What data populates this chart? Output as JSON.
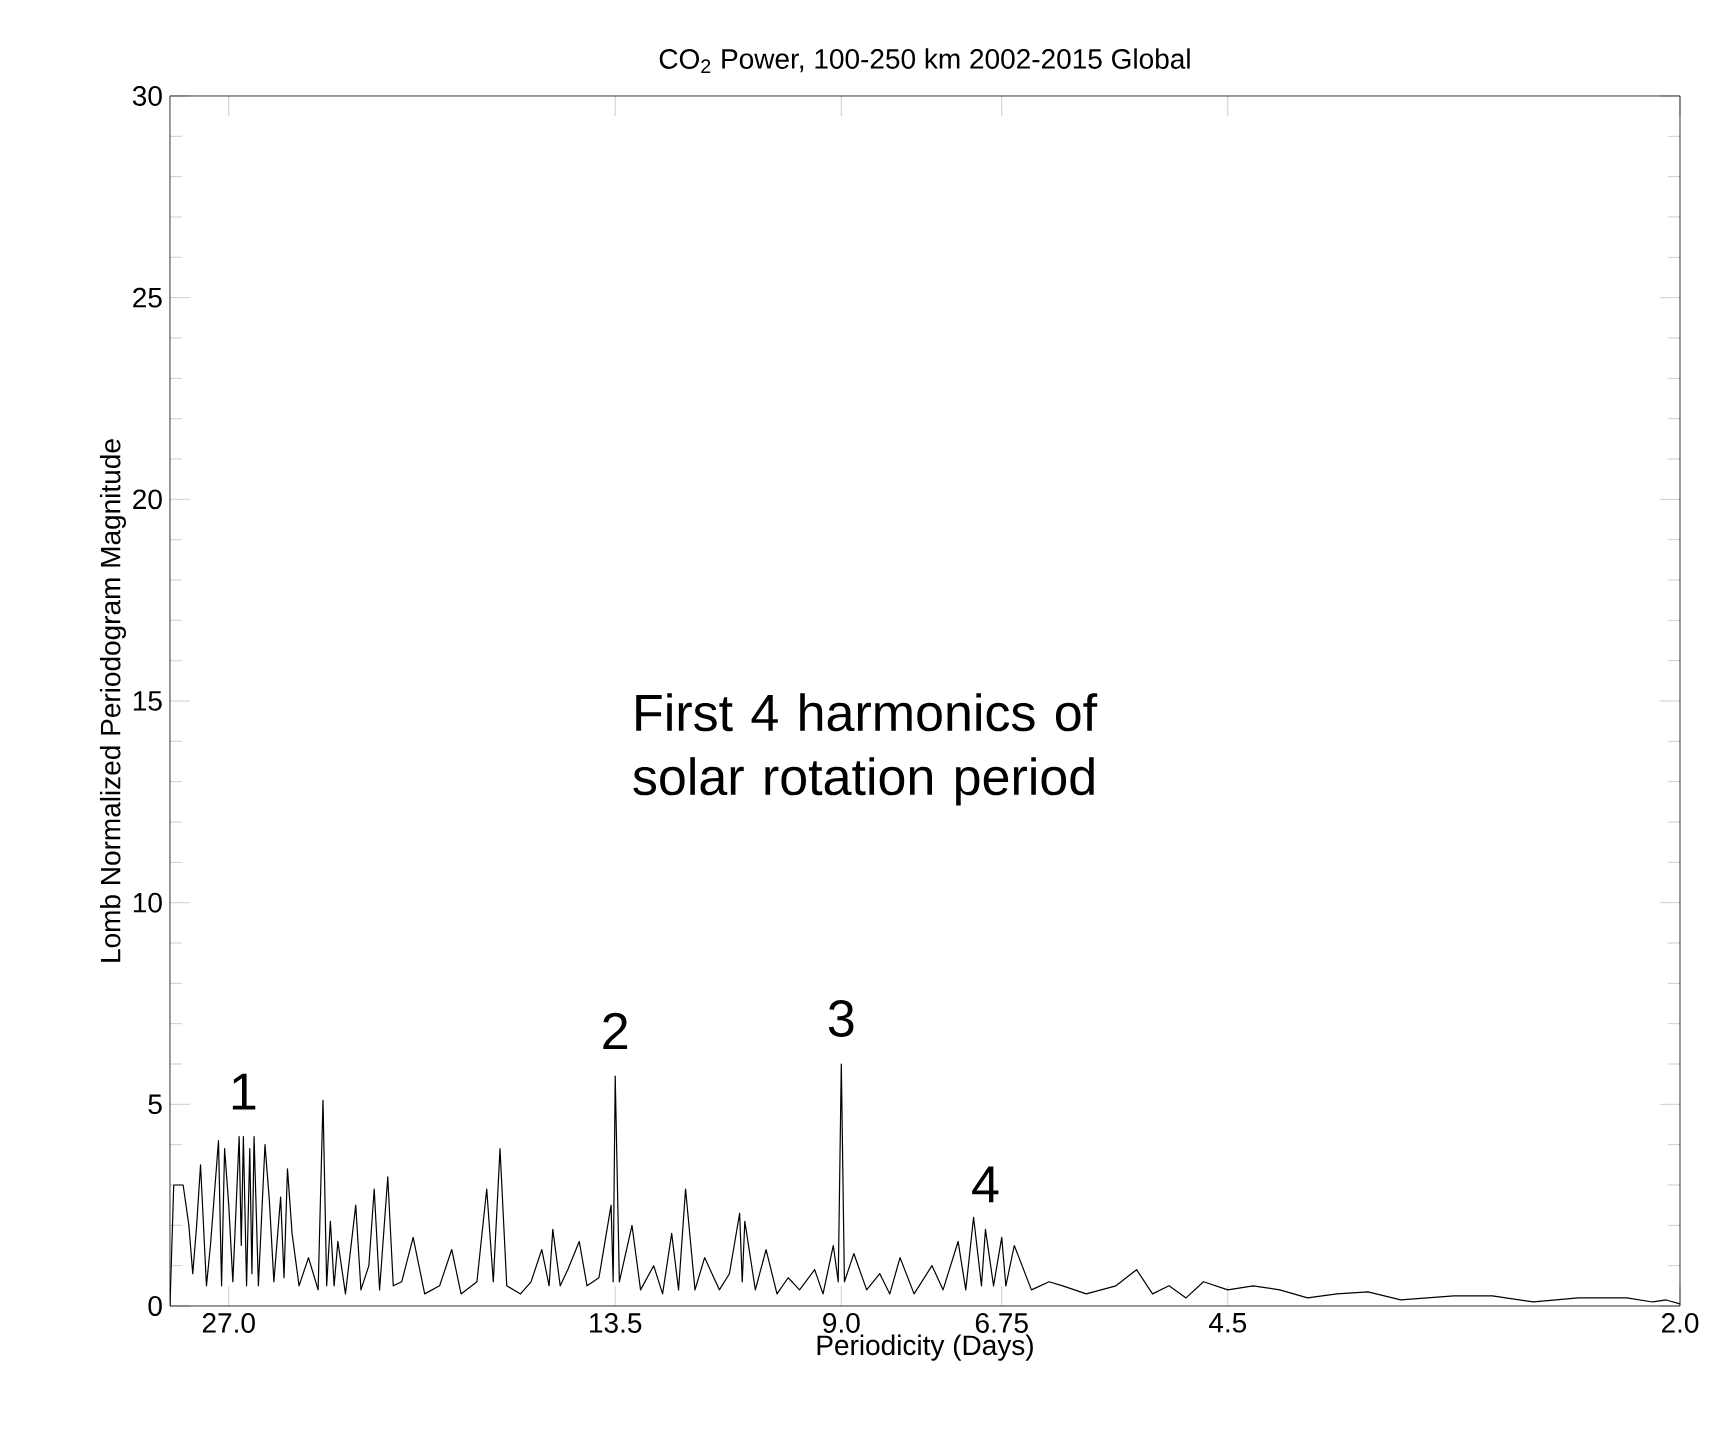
{
  "chart_data": {
    "type": "line",
    "title": "CO$_{2}$ Power, 100-250 km  2002-2015  Global",
    "xlabel": "Periodicity (Days)",
    "ylabel": "Lomb Normalized Periodogram Magnitude",
    "log": "x",
    "xlim": [
      30,
      2
    ],
    "ylim": [
      0,
      30
    ],
    "xticks": [
      {
        "value": 27,
        "label": "27.0"
      },
      {
        "value": 13.5,
        "label": "13.5"
      },
      {
        "value": 9,
        "label": "9.0"
      },
      {
        "value": 6.75,
        "label": "6.75"
      },
      {
        "value": 4.5,
        "label": "4.5"
      },
      {
        "value": 2,
        "label": "2.0"
      }
    ],
    "yticks": [
      0,
      5,
      10,
      15,
      20,
      25,
      30
    ],
    "x": [
      30.0,
      29.8,
      29.3,
      29.0,
      28.8,
      28.6,
      28.4,
      28.1,
      27.9,
      27.5,
      27.35,
      27.2,
      27.0,
      26.8,
      26.5,
      26.4,
      26.3,
      26.15,
      26.0,
      25.9,
      25.8,
      25.6,
      25.3,
      25.1,
      24.9,
      24.6,
      24.45,
      24.3,
      24.1,
      23.8,
      23.4,
      23.0,
      22.8,
      22.65,
      22.5,
      22.35,
      22.2,
      21.9,
      21.5,
      21.3,
      21.0,
      20.8,
      20.6,
      20.3,
      20.1,
      19.8,
      19.4,
      19.0,
      18.5,
      18.1,
      17.8,
      17.3,
      17.0,
      16.8,
      16.6,
      16.4,
      16.0,
      15.7,
      15.4,
      15.2,
      15.1,
      14.9,
      14.7,
      14.4,
      14.2,
      13.9,
      13.6,
      13.55,
      13.5,
      13.4,
      13.1,
      12.9,
      12.6,
      12.4,
      12.2,
      12.05,
      11.9,
      11.7,
      11.5,
      11.2,
      11.0,
      10.8,
      10.75,
      10.7,
      10.5,
      10.3,
      10.1,
      9.9,
      9.7,
      9.44,
      9.3,
      9.13,
      9.05,
      9.0,
      8.95,
      8.8,
      8.6,
      8.4,
      8.25,
      8.1,
      7.9,
      7.65,
      7.5,
      7.3,
      7.2,
      7.1,
      7.0,
      6.95,
      6.85,
      6.75,
      6.7,
      6.6,
      6.4,
      6.2,
      6.05,
      5.8,
      5.5,
      5.3,
      5.15,
      5.0,
      4.85,
      4.7,
      4.5,
      4.3,
      4.1,
      3.9,
      3.7,
      3.5,
      3.3,
      3.0,
      2.8,
      2.6,
      2.4,
      2.2,
      2.1,
      2.05,
      2.0
    ],
    "values": [
      0,
      3.0,
      3.0,
      2.0,
      0.8,
      2.0,
      3.5,
      0.5,
      1.5,
      4.1,
      0.5,
      3.9,
      2.5,
      0.6,
      4.2,
      1.5,
      4.2,
      0.5,
      3.9,
      0.8,
      4.2,
      0.5,
      4.0,
      2.6,
      0.6,
      2.7,
      0.7,
      3.4,
      1.8,
      0.5,
      1.2,
      0.4,
      5.1,
      0.5,
      2.1,
      0.5,
      1.6,
      0.3,
      2.5,
      0.4,
      1.0,
      2.9,
      0.4,
      3.2,
      0.5,
      0.6,
      1.7,
      0.3,
      0.5,
      1.4,
      0.3,
      0.6,
      2.9,
      0.6,
      3.9,
      0.5,
      0.3,
      0.6,
      1.4,
      0.5,
      1.9,
      0.5,
      0.9,
      1.6,
      0.5,
      0.7,
      2.5,
      0.6,
      5.7,
      0.6,
      2.0,
      0.4,
      1.0,
      0.3,
      1.8,
      0.4,
      2.9,
      0.4,
      1.2,
      0.4,
      0.8,
      2.3,
      0.6,
      2.1,
      0.4,
      1.4,
      0.3,
      0.7,
      0.4,
      0.9,
      0.3,
      1.5,
      0.6,
      6.0,
      0.6,
      1.3,
      0.4,
      0.8,
      0.3,
      1.2,
      0.3,
      1.0,
      0.4,
      1.6,
      0.4,
      2.2,
      0.5,
      1.9,
      0.5,
      1.7,
      0.5,
      1.5,
      0.4,
      0.6,
      0.5,
      0.3,
      0.5,
      0.9,
      0.3,
      0.5,
      0.2,
      0.6,
      0.4,
      0.5,
      0.4,
      0.2,
      0.3,
      0.35,
      0.15,
      0.25,
      0.25,
      0.1,
      0.2,
      0.2,
      0.1,
      0.15,
      0.05
    ],
    "color": "#000000",
    "annotations": [
      "First 4 harmonics of solar rotation period",
      {
        "text": "1",
        "x": 26.3,
        "y": 4.2
      },
      {
        "text": "2",
        "x": 13.5,
        "y": 5.7
      },
      {
        "text": "3",
        "x": 9.0,
        "y": 6.0
      },
      {
        "text": "4",
        "x": 6.95,
        "y": 1.9
      }
    ]
  }
}
